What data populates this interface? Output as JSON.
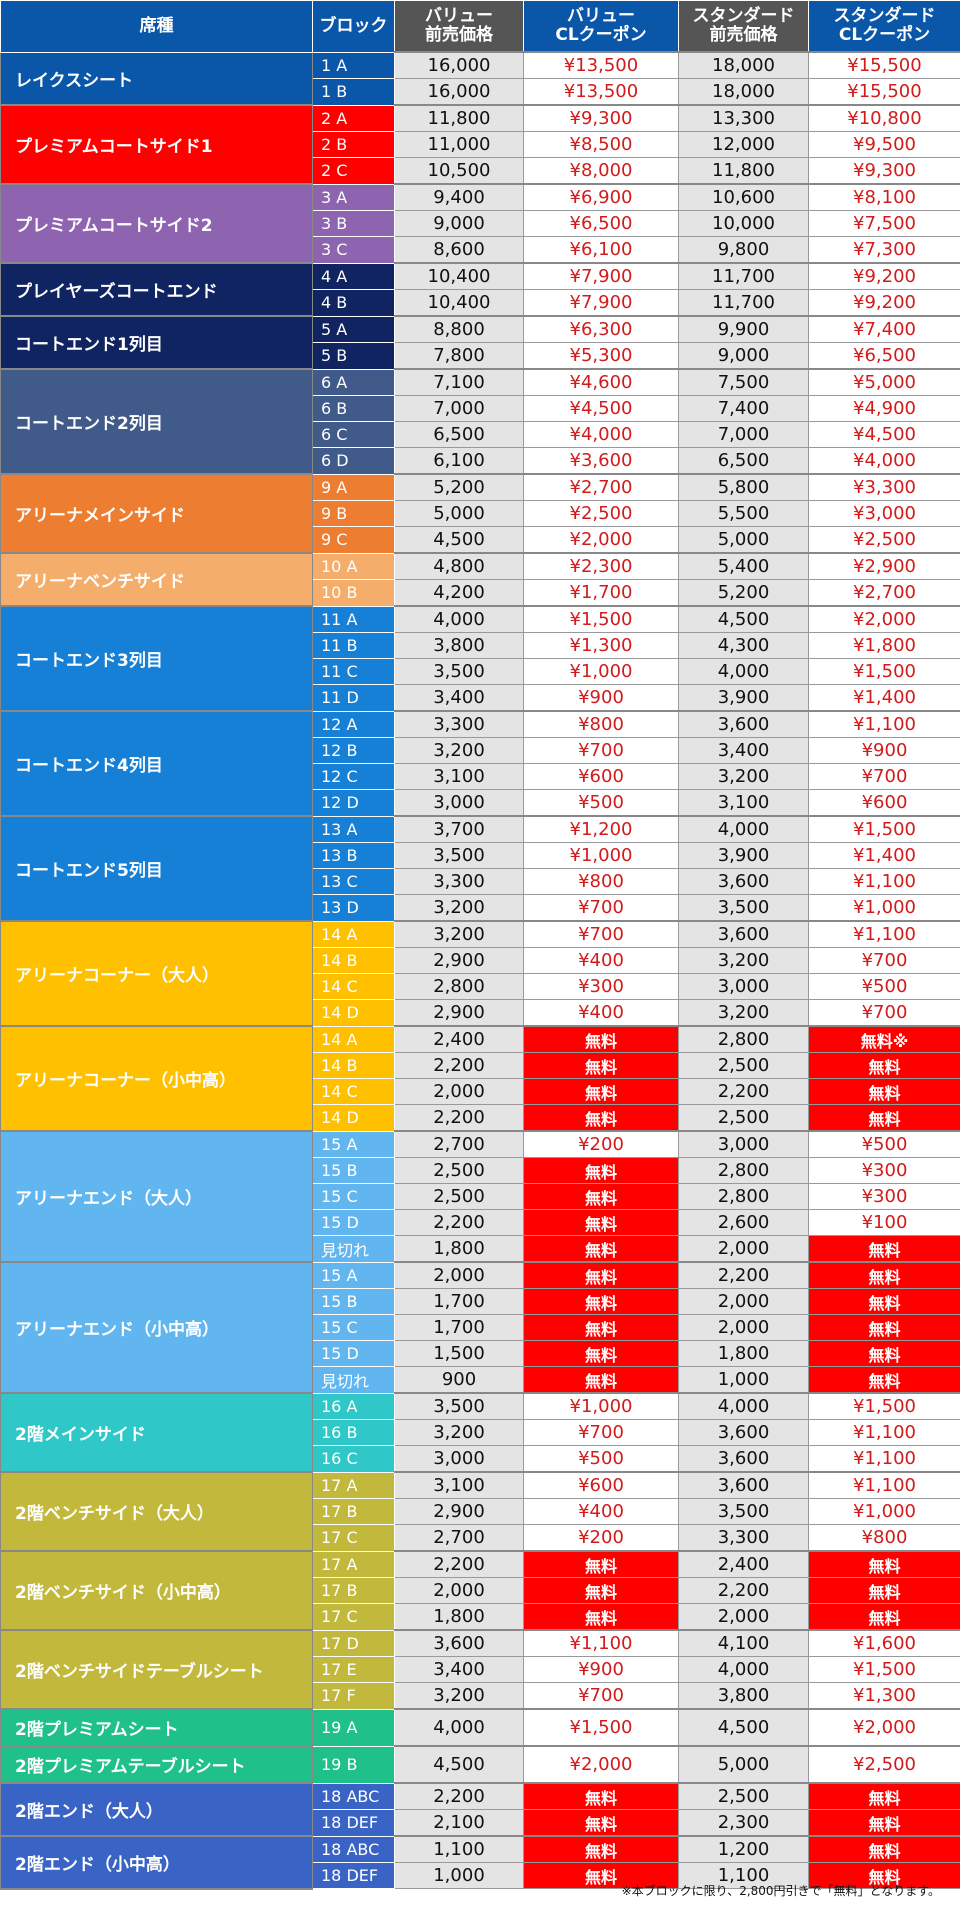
{
  "header": {
    "seat": "席種",
    "block": "ブロック",
    "value_pre": "バリュー\n前売価格",
    "value_cl": "バリュー\nCLクーポン",
    "std_pre": "スタンダード\n前売価格",
    "std_cl": "スタンダード\nCLクーポン"
  },
  "colors": {
    "header_blue": "#0a56a8",
    "header_gray": "#555555",
    "free": "#ff0000",
    "coupon_text": "#d21b1b"
  },
  "groups": [
    {
      "name": "レイクスシート",
      "color": "#0a56a8",
      "rows": [
        [
          "1 A",
          "16,000",
          "¥13,500",
          "18,000",
          "¥15,500"
        ],
        [
          "1 B",
          "16,000",
          "¥13,500",
          "18,000",
          "¥15,500"
        ]
      ]
    },
    {
      "name": "プレミアムコートサイド1",
      "color": "#ff0000",
      "rows": [
        [
          "2 A",
          "11,800",
          "¥9,300",
          "13,300",
          "¥10,800"
        ],
        [
          "2 B",
          "11,000",
          "¥8,500",
          "12,000",
          "¥9,500"
        ],
        [
          "2 C",
          "10,500",
          "¥8,000",
          "11,800",
          "¥9,300"
        ]
      ]
    },
    {
      "name": "プレミアムコートサイド2",
      "color": "#8e63b0",
      "rows": [
        [
          "3 A",
          "9,400",
          "¥6,900",
          "10,600",
          "¥8,100"
        ],
        [
          "3 B",
          "9,000",
          "¥6,500",
          "10,000",
          "¥7,500"
        ],
        [
          "3 C",
          "8,600",
          "¥6,100",
          "9,800",
          "¥7,300"
        ]
      ]
    },
    {
      "name": "プレイヤーズコートエンド",
      "color": "#0f2460",
      "rows": [
        [
          "4 A",
          "10,400",
          "¥7,900",
          "11,700",
          "¥9,200"
        ],
        [
          "4 B",
          "10,400",
          "¥7,900",
          "11,700",
          "¥9,200"
        ]
      ]
    },
    {
      "name": "コートエンド1列目",
      "color": "#0f2460",
      "rows": [
        [
          "5 A",
          "8,800",
          "¥6,300",
          "9,900",
          "¥7,400"
        ],
        [
          "5 B",
          "7,800",
          "¥5,300",
          "9,000",
          "¥6,500"
        ]
      ]
    },
    {
      "name": "コートエンド2列目",
      "color": "#405a8a",
      "rows": [
        [
          "6 A",
          "7,100",
          "¥4,600",
          "7,500",
          "¥5,000"
        ],
        [
          "6 B",
          "7,000",
          "¥4,500",
          "7,400",
          "¥4,900"
        ],
        [
          "6 C",
          "6,500",
          "¥4,000",
          "7,000",
          "¥4,500"
        ],
        [
          "6 D",
          "6,100",
          "¥3,600",
          "6,500",
          "¥4,000"
        ]
      ]
    },
    {
      "name": "アリーナメインサイド",
      "color": "#ed7d31",
      "rows": [
        [
          "9 A",
          "5,200",
          "¥2,700",
          "5,800",
          "¥3,300"
        ],
        [
          "9 B",
          "5,000",
          "¥2,500",
          "5,500",
          "¥3,000"
        ],
        [
          "9 C",
          "4,500",
          "¥2,000",
          "5,000",
          "¥2,500"
        ]
      ]
    },
    {
      "name": "アリーナベンチサイド",
      "color": "#f4ad6a",
      "rows": [
        [
          "10 A",
          "4,800",
          "¥2,300",
          "5,400",
          "¥2,900"
        ],
        [
          "10 B",
          "4,200",
          "¥1,700",
          "5,200",
          "¥2,700"
        ]
      ]
    },
    {
      "name": "コートエンド3列目",
      "color": "#1680d6",
      "rows": [
        [
          "11 A",
          "4,000",
          "¥1,500",
          "4,500",
          "¥2,000"
        ],
        [
          "11 B",
          "3,800",
          "¥1,300",
          "4,300",
          "¥1,800"
        ],
        [
          "11 C",
          "3,500",
          "¥1,000",
          "4,000",
          "¥1,500"
        ],
        [
          "11 D",
          "3,400",
          "¥900",
          "3,900",
          "¥1,400"
        ]
      ]
    },
    {
      "name": "コートエンド4列目",
      "color": "#1680d6",
      "rows": [
        [
          "12 A",
          "3,300",
          "¥800",
          "3,600",
          "¥1,100"
        ],
        [
          "12 B",
          "3,200",
          "¥700",
          "3,400",
          "¥900"
        ],
        [
          "12 C",
          "3,100",
          "¥600",
          "3,200",
          "¥700"
        ],
        [
          "12 D",
          "3,000",
          "¥500",
          "3,100",
          "¥600"
        ]
      ]
    },
    {
      "name": "コートエンド5列目",
      "color": "#1680d6",
      "rows": [
        [
          "13 A",
          "3,700",
          "¥1,200",
          "4,000",
          "¥1,500"
        ],
        [
          "13 B",
          "3,500",
          "¥1,000",
          "3,900",
          "¥1,400"
        ],
        [
          "13 C",
          "3,300",
          "¥800",
          "3,600",
          "¥1,100"
        ],
        [
          "13 D",
          "3,200",
          "¥700",
          "3,500",
          "¥1,000"
        ]
      ]
    },
    {
      "name": "アリーナコーナー（大人）",
      "color": "#ffc000",
      "rows": [
        [
          "14 A",
          "3,200",
          "¥700",
          "3,600",
          "¥1,100"
        ],
        [
          "14 B",
          "2,900",
          "¥400",
          "3,200",
          "¥700"
        ],
        [
          "14 C",
          "2,800",
          "¥300",
          "3,000",
          "¥500"
        ],
        [
          "14 D",
          "2,900",
          "¥400",
          "3,200",
          "¥700"
        ]
      ]
    },
    {
      "name": "アリーナコーナー（小中高）",
      "color": "#ffc000",
      "rows": [
        [
          "14 A",
          "2,400",
          "無料",
          "2,800",
          "無料※"
        ],
        [
          "14 B",
          "2,200",
          "無料",
          "2,500",
          "無料"
        ],
        [
          "14 C",
          "2,000",
          "無料",
          "2,200",
          "無料"
        ],
        [
          "14 D",
          "2,200",
          "無料",
          "2,500",
          "無料"
        ]
      ]
    },
    {
      "name": "アリーナエンド（大人）",
      "color": "#62b6f0",
      "rows": [
        [
          "15 A",
          "2,700",
          "¥200",
          "3,000",
          "¥500"
        ],
        [
          "15 B",
          "2,500",
          "無料",
          "2,800",
          "¥300"
        ],
        [
          "15 C",
          "2,500",
          "無料",
          "2,800",
          "¥300"
        ],
        [
          "15 D",
          "2,200",
          "無料",
          "2,600",
          "¥100"
        ],
        [
          "見切れ",
          "1,800",
          "無料",
          "2,000",
          "無料"
        ]
      ]
    },
    {
      "name": "アリーナエンド（小中高）",
      "color": "#62b6f0",
      "rows": [
        [
          "15 A",
          "2,000",
          "無料",
          "2,200",
          "無料"
        ],
        [
          "15 B",
          "1,700",
          "無料",
          "2,000",
          "無料"
        ],
        [
          "15 C",
          "1,700",
          "無料",
          "2,000",
          "無料"
        ],
        [
          "15 D",
          "1,500",
          "無料",
          "1,800",
          "無料"
        ],
        [
          "見切れ",
          "900",
          "無料",
          "1,000",
          "無料"
        ]
      ]
    },
    {
      "name": "2階メインサイド",
      "color": "#2fc7c7",
      "rows": [
        [
          "16 A",
          "3,500",
          "¥1,000",
          "4,000",
          "¥1,500"
        ],
        [
          "16 B",
          "3,200",
          "¥700",
          "3,600",
          "¥1,100"
        ],
        [
          "16 C",
          "3,000",
          "¥500",
          "3,600",
          "¥1,100"
        ]
      ]
    },
    {
      "name": "2階ベンチサイド（大人）",
      "color": "#c2b93c",
      "rows": [
        [
          "17 A",
          "3,100",
          "¥600",
          "3,600",
          "¥1,100"
        ],
        [
          "17 B",
          "2,900",
          "¥400",
          "3,500",
          "¥1,000"
        ],
        [
          "17 C",
          "2,700",
          "¥200",
          "3,300",
          "¥800"
        ]
      ]
    },
    {
      "name": "2階ベンチサイド（小中高）",
      "color": "#c2b93c",
      "rows": [
        [
          "17 A",
          "2,200",
          "無料",
          "2,400",
          "無料"
        ],
        [
          "17 B",
          "2,000",
          "無料",
          "2,200",
          "無料"
        ],
        [
          "17 C",
          "1,800",
          "無料",
          "2,000",
          "無料"
        ]
      ]
    },
    {
      "name": "2階ベンチサイドテーブルシート",
      "color": "#c2b93c",
      "rows": [
        [
          "17 D",
          "3,600",
          "¥1,100",
          "4,100",
          "¥1,600"
        ],
        [
          "17 E",
          "3,400",
          "¥900",
          "4,000",
          "¥1,500"
        ],
        [
          "17 F",
          "3,200",
          "¥700",
          "3,800",
          "¥1,300"
        ]
      ]
    },
    {
      "name": "2階プレミアムシート",
      "color": "#1fc08a",
      "tall": true,
      "rows": [
        [
          "19 A",
          "4,000",
          "¥1,500",
          "4,500",
          "¥2,000"
        ]
      ]
    },
    {
      "name": "2階プレミアムテーブルシート",
      "color": "#1fc08a",
      "tall": true,
      "rows": [
        [
          "19 B",
          "4,500",
          "¥2,000",
          "5,000",
          "¥2,500"
        ]
      ]
    },
    {
      "name": "2階エンド（大人）",
      "color": "#3a63c6",
      "rows": [
        [
          "18 ABC",
          "2,200",
          "無料",
          "2,500",
          "無料"
        ],
        [
          "18 DEF",
          "2,100",
          "無料",
          "2,300",
          "無料"
        ]
      ]
    },
    {
      "name": "2階エンド（小中高）",
      "color": "#3a63c6",
      "rows": [
        [
          "18 ABC",
          "1,100",
          "無料",
          "1,200",
          "無料"
        ],
        [
          "18 DEF",
          "1,000",
          "無料",
          "1,100",
          "無料"
        ]
      ]
    }
  ],
  "note": "※本ブロックに限り、2,800円引きで「無料」となります。"
}
